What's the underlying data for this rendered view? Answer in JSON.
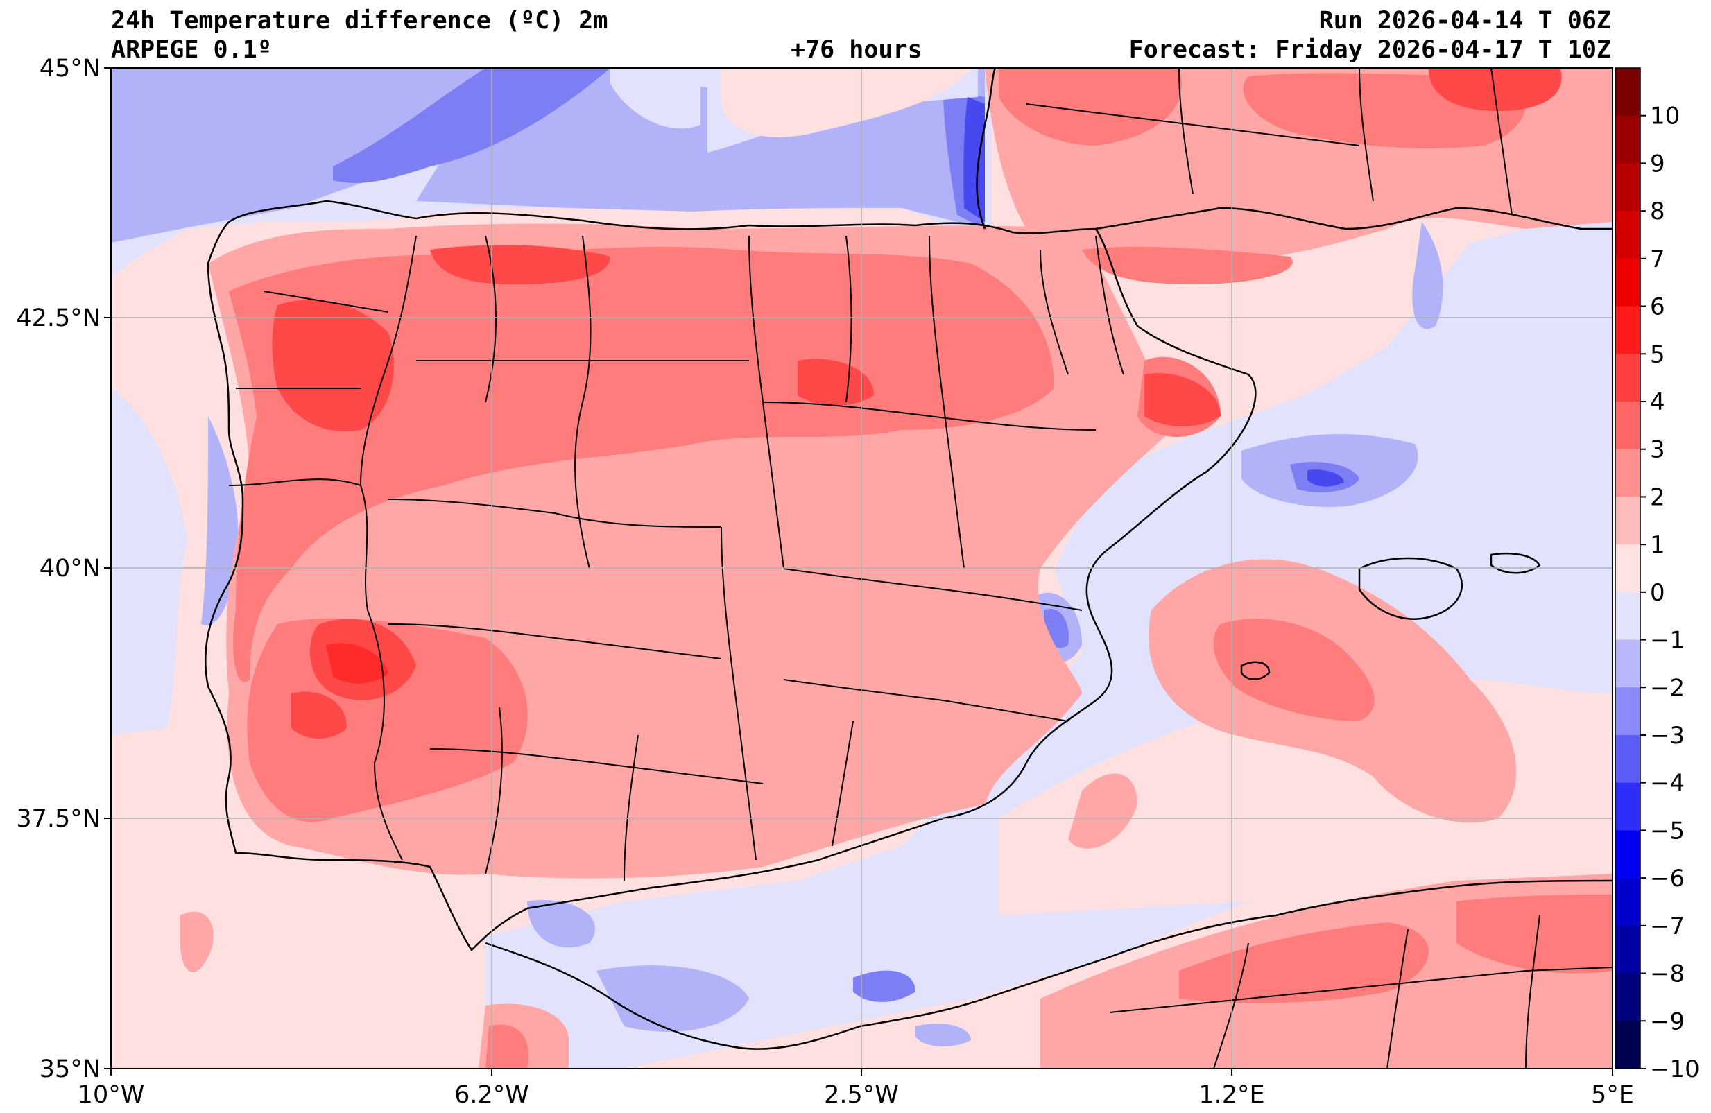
{
  "header": {
    "title": "24h Temperature difference (ºC) 2m",
    "model": "ARPEGE 0.1º",
    "lead_time": "+76 hours",
    "run": "Run 2026-04-14 T 06Z",
    "forecast": "Forecast: Friday 2026-04-17 T 10Z"
  },
  "map": {
    "region": "Iberian Peninsula",
    "lat_range": [
      35,
      45
    ],
    "lon_range": [
      -10,
      5
    ],
    "lat_ticks": [
      "45°N",
      "42.5°N",
      "40°N",
      "37.5°N",
      "35°N"
    ],
    "lon_ticks": [
      "10°W",
      "6.2°W",
      "2.5°W",
      "1.2°E",
      "5°E"
    ]
  },
  "colorbar": {
    "labels": [
      "10",
      "9",
      "8",
      "7",
      "6",
      "5",
      "4",
      "3",
      "2",
      "1",
      "0",
      "−1",
      "−2",
      "−3",
      "−4",
      "−5",
      "−6",
      "−7",
      "−8",
      "−9",
      "−10"
    ],
    "colors": [
      "#7a0000",
      "#9a0000",
      "#b80000",
      "#d40000",
      "#ee0000",
      "#ff1a1a",
      "#ff4040",
      "#ff6666",
      "#ff9090",
      "#ffbcbc",
      "#ffe2e2",
      "#e3e3fc",
      "#b8b8fa",
      "#8a8af8",
      "#5c5cf6",
      "#2e2ef8",
      "#0000f2",
      "#0000cc",
      "#0000a3",
      "#00007a",
      "#000050"
    ]
  },
  "colors": {
    "very_warm": "#ff4848",
    "warm": "#ff7c7c",
    "mild_warm": "#ffa6a6",
    "slight_warm": "#ffe0e0",
    "slight_cool": "#e2e2fc",
    "cool": "#b2b2f8",
    "cold": "#7d7df4",
    "colder": "#4848f0"
  }
}
